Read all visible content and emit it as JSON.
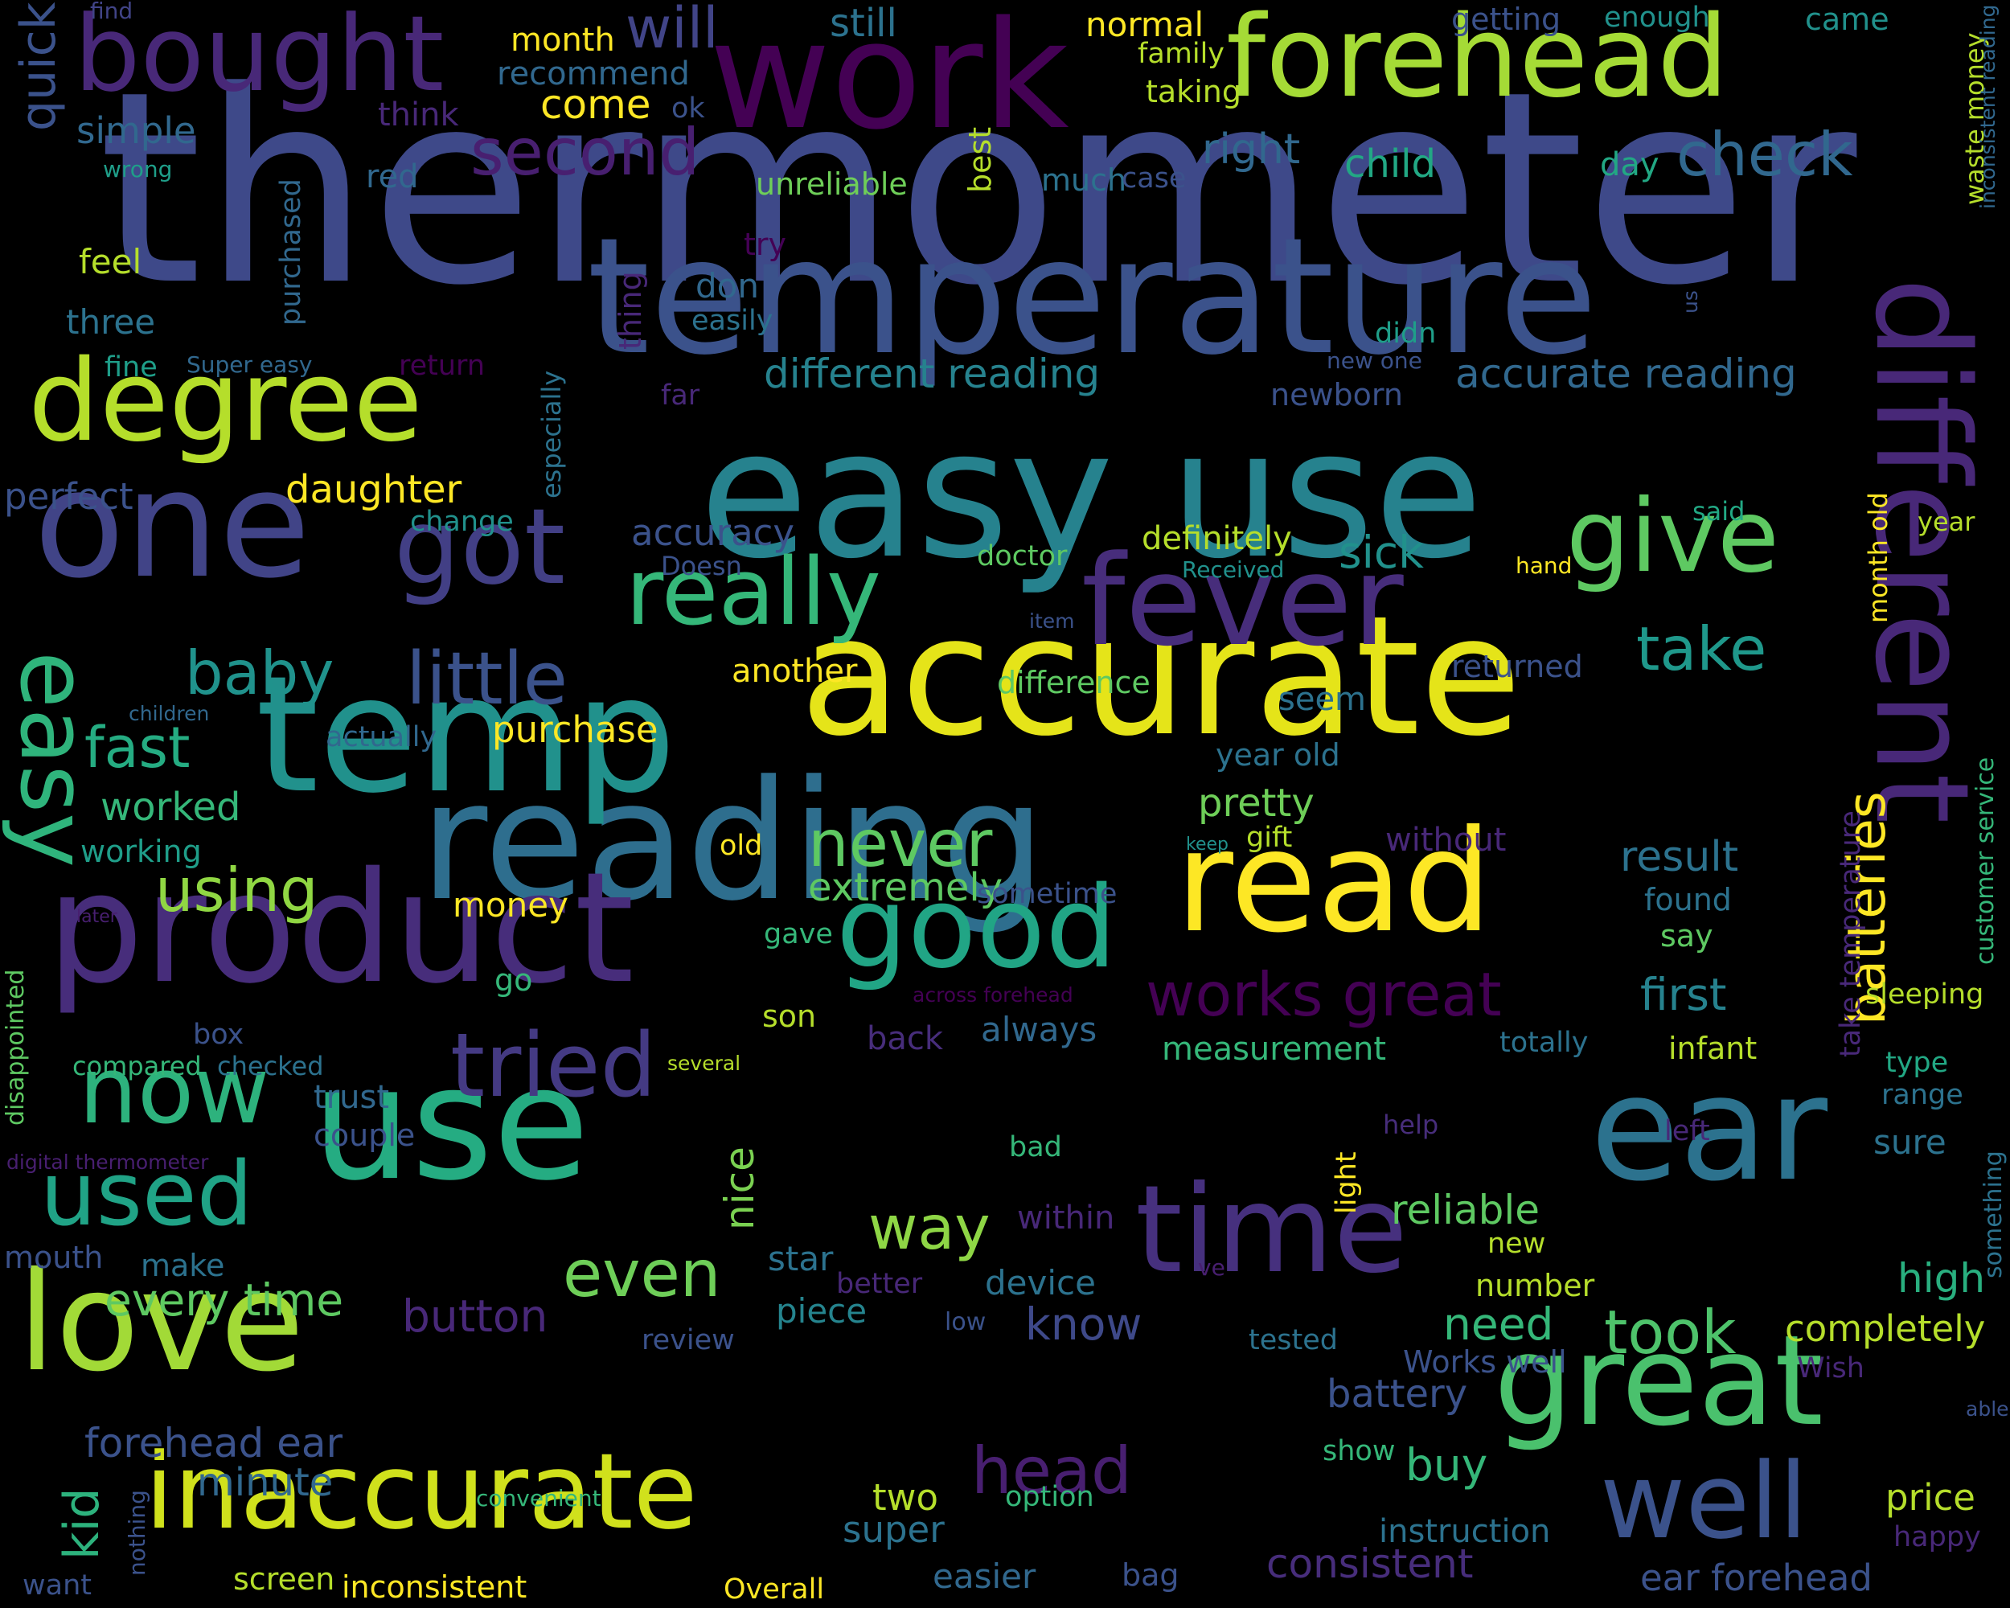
{
  "wordcloud": {
    "palette": {
      "background": "#000000",
      "dark_purple": "#440154",
      "purple": "#482878",
      "indigo": "#3e4989",
      "blue": "#31688e",
      "teal": "#26828e",
      "teal_green": "#1f9e89",
      "green": "#35b779",
      "light_green": "#6ece58",
      "lime": "#b5de2b",
      "yellow": "#fde725"
    },
    "words": [
      {
        "text": "thermometer",
        "color": "#3e4989"
      },
      {
        "text": "easy use",
        "color": "#26828e"
      },
      {
        "text": "temperature",
        "color": "#3b528b"
      },
      {
        "text": "accurate",
        "color": "#e5e419"
      },
      {
        "text": "reading",
        "color": "#2e6e8e"
      },
      {
        "text": "work",
        "color": "#440154"
      },
      {
        "text": "forehead",
        "color": "#a5db36"
      },
      {
        "text": "temp",
        "color": "#21918c"
      },
      {
        "text": "product",
        "color": "#472d7b"
      },
      {
        "text": "use",
        "color": "#25ac82"
      },
      {
        "text": "ear",
        "color": "#2c728e"
      },
      {
        "text": "read",
        "color": "#fde725"
      },
      {
        "text": "one",
        "color": "#414487"
      },
      {
        "text": "different",
        "color": "#482878"
      },
      {
        "text": "fever",
        "color": "#472d7b"
      },
      {
        "text": "love",
        "color": "#a2da37"
      },
      {
        "text": "great",
        "color": "#4ac16d"
      },
      {
        "text": "degree",
        "color": "#b5de2b"
      },
      {
        "text": "bought",
        "color": "#482878"
      },
      {
        "text": "time",
        "color": "#46307e"
      },
      {
        "text": "inaccurate",
        "color": "#d0e11c"
      },
      {
        "text": "good",
        "color": "#21a585"
      },
      {
        "text": "give",
        "color": "#5ec962"
      },
      {
        "text": "got",
        "color": "#423f85"
      },
      {
        "text": "really",
        "color": "#35b779"
      },
      {
        "text": "well",
        "color": "#3b528b"
      },
      {
        "text": "tried",
        "color": "#443a83"
      },
      {
        "text": "now",
        "color": "#2db27d"
      },
      {
        "text": "used",
        "color": "#20a386"
      },
      {
        "text": "easy",
        "color": "#2fb47c"
      },
      {
        "text": "little",
        "color": "#3b528b"
      },
      {
        "text": "works great",
        "color": "#440154"
      },
      {
        "text": "head",
        "color": "#481f70"
      },
      {
        "text": "never",
        "color": "#5ec962"
      },
      {
        "text": "even",
        "color": "#6ece58"
      },
      {
        "text": "second",
        "color": "#481f70"
      },
      {
        "text": "check",
        "color": "#31688e"
      },
      {
        "text": "take",
        "color": "#1f988b"
      },
      {
        "text": "baby",
        "color": "#20928c"
      },
      {
        "text": "using",
        "color": "#90d743"
      },
      {
        "text": "way",
        "color": "#8ed645"
      },
      {
        "text": "took",
        "color": "#4ec36b"
      },
      {
        "text": "batteries",
        "color": "#fde725"
      },
      {
        "text": "fast",
        "color": "#25ac82"
      },
      {
        "text": "kid",
        "color": "#2db27d"
      },
      {
        "text": "will",
        "color": "#414487"
      },
      {
        "text": "consistent",
        "color": "#472d7b"
      },
      {
        "text": "different reading",
        "color": "#26828e"
      },
      {
        "text": "accurate reading",
        "color": "#31688e"
      },
      {
        "text": "every time",
        "color": "#5ec962"
      },
      {
        "text": "forehead ear",
        "color": "#3b528b"
      },
      {
        "text": "minute",
        "color": "#31688e"
      },
      {
        "text": "ear forehead",
        "color": "#3b528b"
      },
      {
        "text": "need",
        "color": "#35b779"
      },
      {
        "text": "button",
        "color": "#482878"
      },
      {
        "text": "know",
        "color": "#3e4989"
      },
      {
        "text": "first",
        "color": "#26828e"
      },
      {
        "text": "result",
        "color": "#2c728e"
      },
      {
        "text": "pretty",
        "color": "#6ece58"
      },
      {
        "text": "extremely",
        "color": "#5ec962"
      },
      {
        "text": "purchase",
        "color": "#fde725"
      },
      {
        "text": "daughter",
        "color": "#fde725"
      },
      {
        "text": "worked",
        "color": "#35b779"
      },
      {
        "text": "buy",
        "color": "#35b779"
      },
      {
        "text": "two",
        "color": "#b5de2b"
      },
      {
        "text": "super",
        "color": "#2c728e"
      },
      {
        "text": "quick",
        "color": "#3b528b"
      },
      {
        "text": "simple",
        "color": "#31688e"
      },
      {
        "text": "right",
        "color": "#31688e"
      },
      {
        "text": "child",
        "color": "#22a884"
      },
      {
        "text": "sick",
        "color": "#21918c"
      },
      {
        "text": "doctor",
        "color": "#5ec962"
      },
      {
        "text": "definitely",
        "color": "#b5de2b"
      },
      {
        "text": "accuracy",
        "color": "#3b528b"
      },
      {
        "text": "nice",
        "color": "#7ad151"
      },
      {
        "text": "reliable",
        "color": "#5ec962"
      },
      {
        "text": "high",
        "color": "#29af7f"
      },
      {
        "text": "completely",
        "color": "#b5de2b"
      },
      {
        "text": "battery",
        "color": "#3b528b"
      },
      {
        "text": "price",
        "color": "#b5de2b"
      },
      {
        "text": "instruction",
        "color": "#2c728e"
      },
      {
        "text": "piece",
        "color": "#25848e"
      },
      {
        "text": "device",
        "color": "#2c728e"
      },
      {
        "text": "star",
        "color": "#2c728e"
      },
      {
        "text": "easier",
        "color": "#31688e"
      },
      {
        "text": "inconsistent",
        "color": "#fde725"
      },
      {
        "text": "screen",
        "color": "#b5de2b"
      },
      {
        "text": "Overall",
        "color": "#fde725"
      },
      {
        "text": "bag",
        "color": "#3b528b"
      },
      {
        "text": "come",
        "color": "#fde725"
      },
      {
        "text": "month",
        "color": "#fde725"
      },
      {
        "text": "normal",
        "color": "#fde725"
      },
      {
        "text": "family",
        "color": "#b5de2b"
      },
      {
        "text": "taking",
        "color": "#b5de2b"
      },
      {
        "text": "recommend",
        "color": "#31688e"
      },
      {
        "text": "still",
        "color": "#2c728e"
      },
      {
        "text": "think",
        "color": "#482878"
      },
      {
        "text": "ok",
        "color": "#3b528b"
      },
      {
        "text": "find",
        "color": "#414487"
      },
      {
        "text": "getting",
        "color": "#3b528b"
      },
      {
        "text": "enough",
        "color": "#21918c"
      },
      {
        "text": "came",
        "color": "#21918c"
      },
      {
        "text": "red",
        "color": "#31688e"
      },
      {
        "text": "unreliable",
        "color": "#6ece58"
      },
      {
        "text": "best",
        "color": "#b5de2b"
      },
      {
        "text": "much",
        "color": "#2c728e"
      },
      {
        "text": "case",
        "color": "#3b528b"
      },
      {
        "text": "day",
        "color": "#22a884"
      },
      {
        "text": "wrong",
        "color": "#1f9e89"
      },
      {
        "text": "purchased",
        "color": "#31688e"
      },
      {
        "text": "feel",
        "color": "#b5de2b"
      },
      {
        "text": "three",
        "color": "#2c728e"
      },
      {
        "text": "try",
        "color": "#440154"
      },
      {
        "text": "don",
        "color": "#31688e"
      },
      {
        "text": "easily",
        "color": "#2c728e"
      },
      {
        "text": "thing",
        "color": "#482878"
      },
      {
        "text": "fine",
        "color": "#1f9e89"
      },
      {
        "text": "Super easy",
        "color": "#31688e"
      },
      {
        "text": "return",
        "color": "#440154"
      },
      {
        "text": "far",
        "color": "#482878"
      },
      {
        "text": "especially",
        "color": "#2c728e"
      },
      {
        "text": "new one",
        "color": "#3b528b"
      },
      {
        "text": "didn",
        "color": "#1f9e89"
      },
      {
        "text": "us",
        "color": "#3b528b"
      },
      {
        "text": "waste money",
        "color": "#b5de2b"
      },
      {
        "text": "inconsistent reading",
        "color": "#31688e"
      },
      {
        "text": "newborn",
        "color": "#3b528b"
      },
      {
        "text": "perfect",
        "color": "#3b528b"
      },
      {
        "text": "change",
        "color": "#21918c"
      },
      {
        "text": "month old",
        "color": "#fde725"
      },
      {
        "text": "said",
        "color": "#22a884"
      },
      {
        "text": "year",
        "color": "#b5de2b"
      },
      {
        "text": "Doesn",
        "color": "#3b528b"
      },
      {
        "text": "Received",
        "color": "#21918c"
      },
      {
        "text": "hand",
        "color": "#fde725"
      },
      {
        "text": "item",
        "color": "#3b528b"
      },
      {
        "text": "returned",
        "color": "#3b528b"
      },
      {
        "text": "difference",
        "color": "#5ec962"
      },
      {
        "text": "another",
        "color": "#fde725"
      },
      {
        "text": "children",
        "color": "#31688e"
      },
      {
        "text": "seem",
        "color": "#2c728e"
      },
      {
        "text": "actually",
        "color": "#31688e"
      },
      {
        "text": "year old",
        "color": "#2c728e"
      },
      {
        "text": "without",
        "color": "#482878"
      },
      {
        "text": "take temperature",
        "color": "#482878"
      },
      {
        "text": "customer service",
        "color": "#35b779"
      },
      {
        "text": "working",
        "color": "#1f9e89"
      },
      {
        "text": "old",
        "color": "#fde725"
      },
      {
        "text": "keep",
        "color": "#21918c"
      },
      {
        "text": "gift",
        "color": "#b5de2b"
      },
      {
        "text": "money",
        "color": "#fde725"
      },
      {
        "text": "sometime",
        "color": "#3b528b"
      },
      {
        "text": "found",
        "color": "#2c728e"
      },
      {
        "text": "later",
        "color": "#481f70"
      },
      {
        "text": "gave",
        "color": "#35b779"
      },
      {
        "text": "say",
        "color": "#5ec962"
      },
      {
        "text": "disappointed",
        "color": "#5ec962"
      },
      {
        "text": "go",
        "color": "#35b779"
      },
      {
        "text": "across forehead",
        "color": "#440154"
      },
      {
        "text": "sleeping",
        "color": "#b5de2b"
      },
      {
        "text": "son",
        "color": "#b5de2b"
      },
      {
        "text": "back",
        "color": "#472d7b"
      },
      {
        "text": "always",
        "color": "#31688e"
      },
      {
        "text": "box",
        "color": "#3b528b"
      },
      {
        "text": "measurement",
        "color": "#35b779"
      },
      {
        "text": "totally",
        "color": "#2c728e"
      },
      {
        "text": "infant",
        "color": "#b5de2b"
      },
      {
        "text": "compared",
        "color": "#35b779"
      },
      {
        "text": "checked",
        "color": "#2c728e"
      },
      {
        "text": "several",
        "color": "#b5de2b"
      },
      {
        "text": "type",
        "color": "#22a884"
      },
      {
        "text": "range",
        "color": "#2c728e"
      },
      {
        "text": "trust",
        "color": "#31688e"
      },
      {
        "text": "couple",
        "color": "#3b528b"
      },
      {
        "text": "something",
        "color": "#2c728e"
      },
      {
        "text": "light",
        "color": "#fde725"
      },
      {
        "text": "help",
        "color": "#472d7b"
      },
      {
        "text": "left",
        "color": "#482878"
      },
      {
        "text": "digital thermometer",
        "color": "#481f70"
      },
      {
        "text": "bad",
        "color": "#35b779"
      },
      {
        "text": "sure",
        "color": "#2c728e"
      },
      {
        "text": "within",
        "color": "#482878"
      },
      {
        "text": "new",
        "color": "#b5de2b"
      },
      {
        "text": "make",
        "color": "#2c728e"
      },
      {
        "text": "mouth",
        "color": "#3b528b"
      },
      {
        "text": "better",
        "color": "#482878"
      },
      {
        "text": "ve",
        "color": "#481f70"
      },
      {
        "text": "number",
        "color": "#b5de2b"
      },
      {
        "text": "low",
        "color": "#3b528b"
      },
      {
        "text": "review",
        "color": "#3b528b"
      },
      {
        "text": "tested",
        "color": "#2c728e"
      },
      {
        "text": "Works well",
        "color": "#3b528b"
      },
      {
        "text": "Wish",
        "color": "#482878"
      },
      {
        "text": "able",
        "color": "#3b528b"
      },
      {
        "text": "show",
        "color": "#35b779"
      },
      {
        "text": "convenient",
        "color": "#35b779"
      },
      {
        "text": "option",
        "color": "#35b779"
      },
      {
        "text": "nothing",
        "color": "#3b528b"
      },
      {
        "text": "happy",
        "color": "#482878"
      },
      {
        "text": "want",
        "color": "#3b528b"
      }
    ]
  }
}
